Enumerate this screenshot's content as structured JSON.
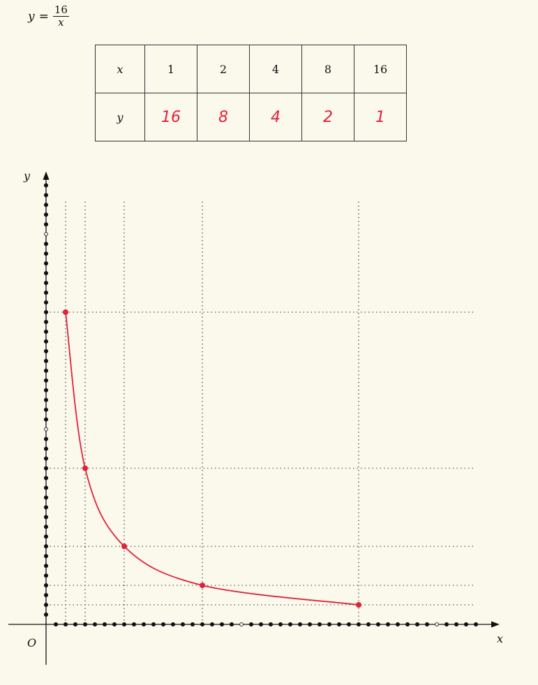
{
  "equation": {
    "lhs": "y",
    "numerator": "16",
    "denominator": "x"
  },
  "table": {
    "x_header": "x",
    "y_header": "y",
    "x_values": [
      "1",
      "2",
      "4",
      "8",
      "16"
    ],
    "y_values": [
      "16",
      "8",
      "4",
      "2",
      "1"
    ]
  },
  "chart_data": {
    "type": "line",
    "x": [
      1,
      2,
      4,
      8,
      16
    ],
    "y": [
      16,
      8,
      4,
      2,
      1
    ],
    "xlabel": "x",
    "ylabel": "y",
    "origin_label": "O",
    "xlim": [
      0,
      22
    ],
    "ylim": [
      0,
      22.5
    ],
    "grid": "dotted guide lines at each plotted point",
    "tick_dots_per_unit": 2,
    "colors": {
      "curve": "#e0223a",
      "axes": "#111111",
      "grid": "#333333"
    }
  }
}
